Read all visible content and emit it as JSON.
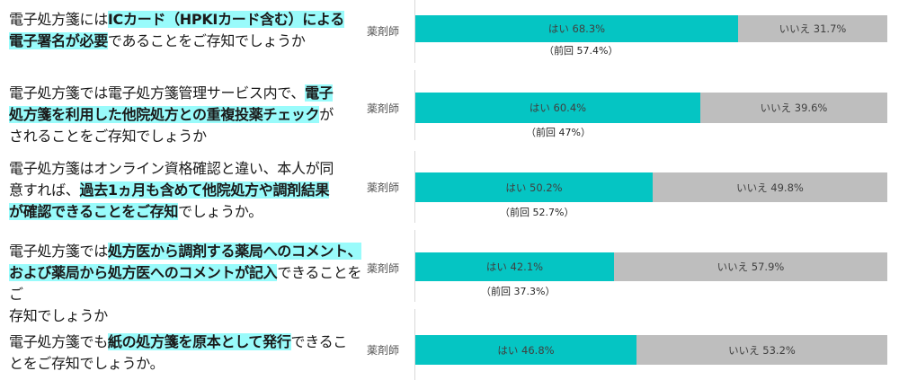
{
  "colors": {
    "yes": "#05c5c3",
    "no": "#bebebe",
    "highlight": "#99fbfb"
  },
  "rows": [
    {
      "question_parts": [
        {
          "text": "電子処方箋には",
          "hl": false
        },
        {
          "text": "ICカード（HPKIカード含む）による",
          "hl": true
        },
        {
          "text": "\n",
          "hl": false
        },
        {
          "text": "電子署名が必要",
          "hl": true
        },
        {
          "text": "であることをご存知でしょうか",
          "hl": false
        }
      ],
      "role": "薬剤師",
      "yes_label": "はい 68.3%",
      "no_label": "いいえ 31.7%",
      "previous": "（前回 57.4%）"
    },
    {
      "question_parts": [
        {
          "text": "電子処方箋では電子処方箋管理サービス内で、",
          "hl": false
        },
        {
          "text": "電子",
          "hl": true
        },
        {
          "text": "\n",
          "hl": false
        },
        {
          "text": "処方箋を利用した他院処方との重複投薬チェック",
          "hl": true
        },
        {
          "text": "が\nされることをご存知でしょうか",
          "hl": false
        }
      ],
      "role": "薬剤師",
      "yes_label": "はい 60.4%",
      "no_label": "いいえ 39.6%",
      "previous": "（前回 47%）"
    },
    {
      "question_parts": [
        {
          "text": "電子処方箋はオンライン資格確認と違い、本人が同\n意すれば、",
          "hl": false
        },
        {
          "text": "過去1ヵ月も含めて他院処方や調剤結果",
          "hl": true
        },
        {
          "text": "\n",
          "hl": false
        },
        {
          "text": "が確認できることをご存知",
          "hl": true
        },
        {
          "text": "でしょうか。",
          "hl": false
        }
      ],
      "role": "薬剤師",
      "yes_label": "はい 50.2%",
      "no_label": "いいえ 49.8%",
      "previous": "（前回 52.7%）"
    },
    {
      "question_parts": [
        {
          "text": "電子処方箋では",
          "hl": false
        },
        {
          "text": "処方医から調剤する薬局へのコメント、",
          "hl": true
        },
        {
          "text": "\n",
          "hl": false
        },
        {
          "text": "および薬局から処方医へのコメントが記入",
          "hl": true
        },
        {
          "text": "できることをご\n存知でしょうか",
          "hl": false
        }
      ],
      "role": "薬剤師",
      "yes_label": "はい 42.1%",
      "no_label": "いいえ 57.9%",
      "previous": "（前回 37.3%）"
    },
    {
      "question_parts": [
        {
          "text": "電子処方箋でも",
          "hl": false
        },
        {
          "text": "紙の処方箋を原本として発行",
          "hl": true
        },
        {
          "text": "できるこ\nとをご存知でしょうか。",
          "hl": false
        }
      ],
      "role": "薬剤師",
      "yes_label": "はい 46.8%",
      "no_label": "いいえ 53.2%",
      "previous": ""
    }
  ],
  "chart_data": {
    "type": "bar",
    "orientation": "horizontal",
    "stacked": true,
    "percent": true,
    "title": "",
    "xlabel": "",
    "ylabel": "",
    "xlim": [
      0,
      100
    ],
    "grid": false,
    "legend": null,
    "categories": [
      "電子処方箋にはICカード（HPKIカード含む）による電子署名が必要であることをご存知でしょうか",
      "電子処方箋では電子処方箋管理サービス内で、電子処方箋を利用した他院処方との重複投薬チェックがされることをご存知でしょうか",
      "電子処方箋はオンライン資格確認と違い、本人が同意すれば、過去1ヵ月も含めて他院処方や調剤結果が確認できることをご存知でしょうか。",
      "電子処方箋では処方医から調剤する薬局へのコメント、および薬局から処方医へのコメントが記入できることをご存知でしょうか",
      "電子処方箋でも紙の処方箋を原本として発行できることをご存知でしょうか。"
    ],
    "group_label": "薬剤師",
    "series": [
      {
        "name": "はい",
        "color": "#05c5c3",
        "values": [
          68.3,
          60.4,
          50.2,
          42.1,
          46.8
        ]
      },
      {
        "name": "いいえ",
        "color": "#bebebe",
        "values": [
          31.7,
          39.6,
          49.8,
          57.9,
          53.2
        ]
      }
    ],
    "annotations": [
      {
        "row": 0,
        "text": "（前回 57.4%）",
        "previous_yes": 57.4
      },
      {
        "row": 1,
        "text": "（前回 47%）",
        "previous_yes": 47
      },
      {
        "row": 2,
        "text": "（前回 52.7%）",
        "previous_yes": 52.7
      },
      {
        "row": 3,
        "text": "（前回 37.3%）",
        "previous_yes": 37.3
      }
    ]
  }
}
